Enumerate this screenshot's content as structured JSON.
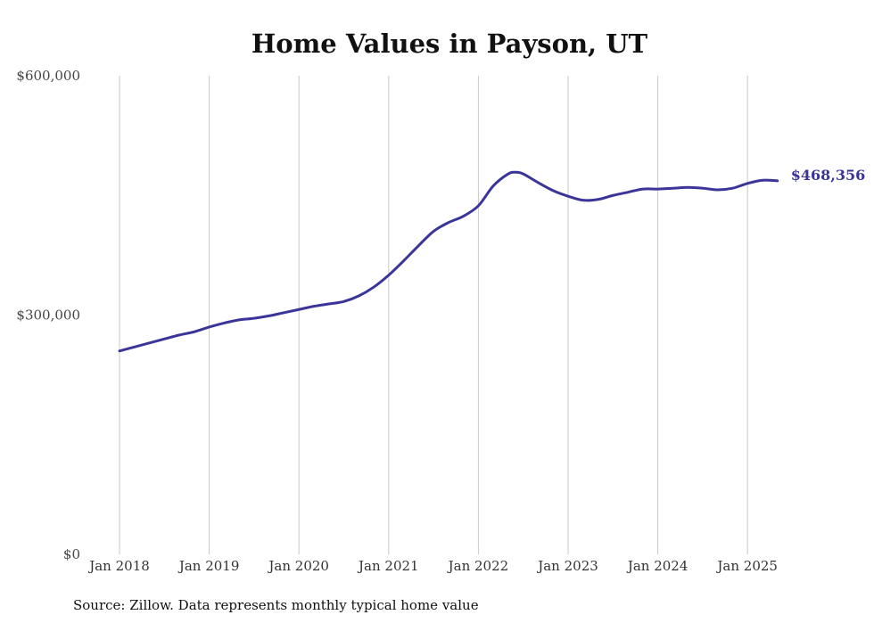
{
  "colors": {
    "series": "#3b3599",
    "grid": "#c8c8c8",
    "text": "#111111"
  },
  "source_note": "Source: Zillow. Data represents monthly typical home value",
  "chart_data": {
    "type": "line",
    "title": "Home Values in Payson, UT",
    "xlabel": "",
    "ylabel": "",
    "ylim": [
      0,
      600000
    ],
    "y_ticks": [
      {
        "value": 0,
        "label": "$0"
      },
      {
        "value": 300000,
        "label": "$300,000"
      },
      {
        "value": 600000,
        "label": "$600,000"
      }
    ],
    "x_ticks": [
      {
        "value": "2018-01",
        "label": "Jan 2018"
      },
      {
        "value": "2019-01",
        "label": "Jan 2019"
      },
      {
        "value": "2020-01",
        "label": "Jan 2020"
      },
      {
        "value": "2021-01",
        "label": "Jan 2021"
      },
      {
        "value": "2022-01",
        "label": "Jan 2022"
      },
      {
        "value": "2023-01",
        "label": "Jan 2023"
      },
      {
        "value": "2024-01",
        "label": "Jan 2024"
      },
      {
        "value": "2025-01",
        "label": "Jan 2025"
      }
    ],
    "grid": "vertical",
    "end_label": "$468,356",
    "series": [
      {
        "points": [
          [
            "2018-01",
            255000
          ],
          [
            "2018-03",
            260000
          ],
          [
            "2018-05",
            265000
          ],
          [
            "2018-07",
            270000
          ],
          [
            "2018-09",
            275000
          ],
          [
            "2018-11",
            279000
          ],
          [
            "2019-01",
            285000
          ],
          [
            "2019-03",
            290000
          ],
          [
            "2019-05",
            294000
          ],
          [
            "2019-07",
            296000
          ],
          [
            "2019-09",
            299000
          ],
          [
            "2019-11",
            303000
          ],
          [
            "2020-01",
            307000
          ],
          [
            "2020-03",
            311000
          ],
          [
            "2020-05",
            314000
          ],
          [
            "2020-07",
            317000
          ],
          [
            "2020-09",
            324000
          ],
          [
            "2020-11",
            335000
          ],
          [
            "2021-01",
            350000
          ],
          [
            "2021-03",
            368000
          ],
          [
            "2021-05",
            387000
          ],
          [
            "2021-07",
            405000
          ],
          [
            "2021-09",
            416000
          ],
          [
            "2021-11",
            424000
          ],
          [
            "2022-01",
            437000
          ],
          [
            "2022-03",
            462000
          ],
          [
            "2022-05",
            477000
          ],
          [
            "2022-06",
            479000
          ],
          [
            "2022-07",
            477000
          ],
          [
            "2022-09",
            466000
          ],
          [
            "2022-11",
            456000
          ],
          [
            "2023-01",
            449000
          ],
          [
            "2023-03",
            444000
          ],
          [
            "2023-05",
            445000
          ],
          [
            "2023-07",
            450000
          ],
          [
            "2023-09",
            454000
          ],
          [
            "2023-11",
            458000
          ],
          [
            "2024-01",
            458000
          ],
          [
            "2024-03",
            459000
          ],
          [
            "2024-05",
            460000
          ],
          [
            "2024-07",
            459000
          ],
          [
            "2024-09",
            457000
          ],
          [
            "2024-11",
            459000
          ],
          [
            "2025-01",
            465000
          ],
          [
            "2025-03",
            469000
          ],
          [
            "2025-05",
            468356
          ]
        ]
      }
    ]
  }
}
